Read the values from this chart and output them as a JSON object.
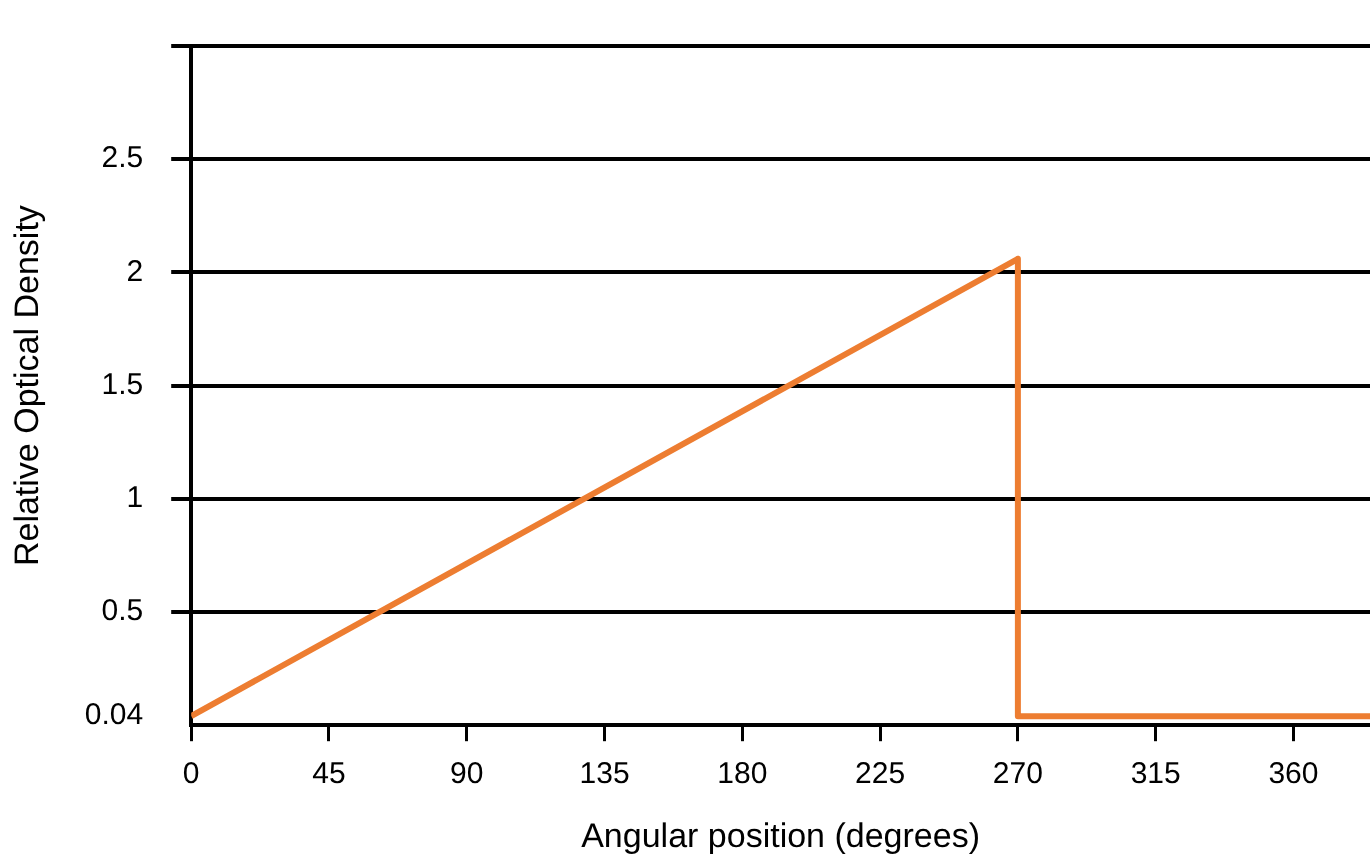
{
  "chart_data": {
    "type": "line",
    "xlabel": "Angular position (degrees)",
    "ylabel": "Relative Optical Density",
    "x": [
      0,
      270,
      270,
      385
    ],
    "series": [
      {
        "color": "#ed7d31",
        "values": [
          0.04,
          2.06,
          0.04,
          0.04
        ]
      }
    ],
    "xlim": [
      0,
      385
    ],
    "xticks": [
      0,
      45,
      90,
      135,
      180,
      225,
      270,
      315,
      360
    ],
    "ylim": [
      0,
      3
    ],
    "yticks": [
      0.04,
      0.5,
      1,
      1.5,
      2,
      2.5,
      {
        "value": 3,
        "label": null
      }
    ],
    "grid": "y",
    "legend": false,
    "marker": "none",
    "line_style": "solid"
  }
}
